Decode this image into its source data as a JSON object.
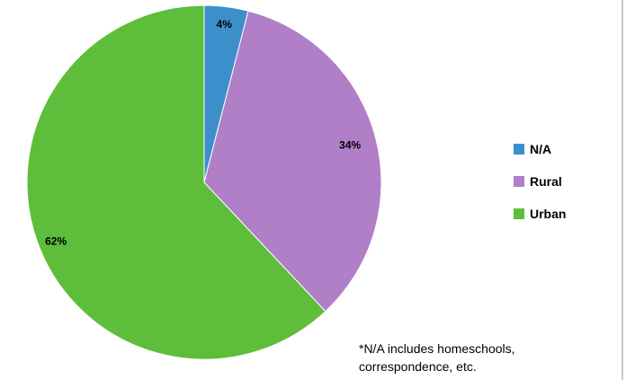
{
  "chart_data": {
    "type": "pie",
    "categories": [
      "N/A",
      "Rural",
      "Urban"
    ],
    "values": [
      4,
      34,
      62
    ],
    "data_labels": [
      "4%",
      "34%",
      "62%"
    ],
    "colors": [
      "#3d8fcc",
      "#b07fc8",
      "#5ebd3a"
    ],
    "legend_position": "right"
  },
  "legend": {
    "items": [
      {
        "label": "N/A",
        "color": "#3d8fcc"
      },
      {
        "label": "Rural",
        "color": "#b07fc8"
      },
      {
        "label": "Urban",
        "color": "#5ebd3a"
      }
    ]
  },
  "footnote": "*N/A includes homeschools,\ncorrespondence, etc."
}
